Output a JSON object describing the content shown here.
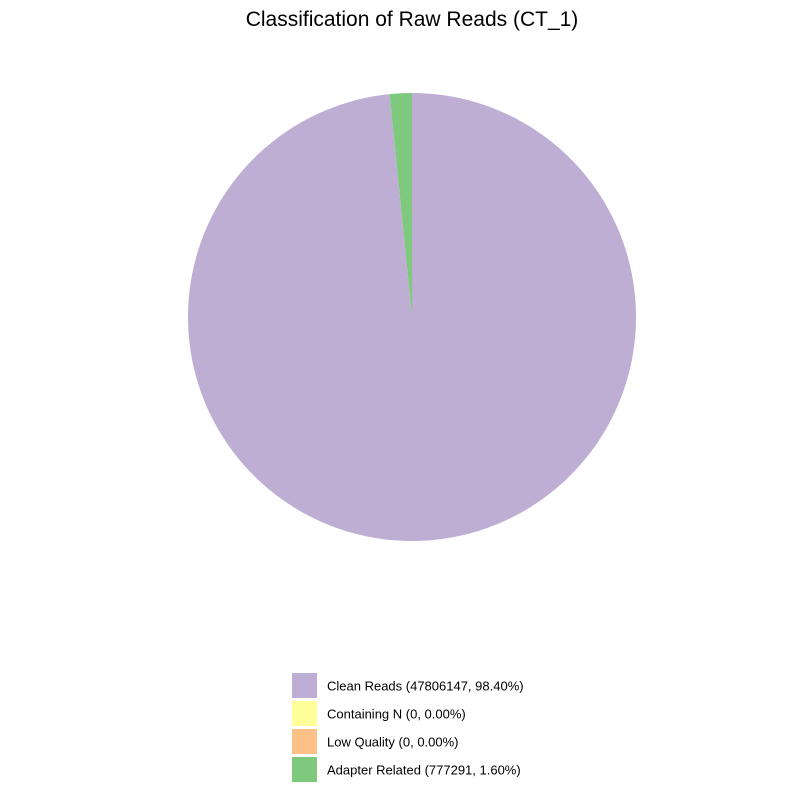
{
  "chart_data": {
    "type": "pie",
    "title": "Classification of Raw Reads (CT_1)",
    "start_angle_deg": 0,
    "direction": "clockwise",
    "legend_position": "bottom",
    "slices": [
      {
        "name": "Clean Reads",
        "value": 47806147,
        "percent": 98.4,
        "color": "#beaed4",
        "legend_label": "Clean Reads (47806147, 98.40%)"
      },
      {
        "name": "Containing N",
        "value": 0,
        "percent": 0.0,
        "color": "#ffff99",
        "legend_label": "Containing N (0, 0.00%)"
      },
      {
        "name": "Low Quality",
        "value": 0,
        "percent": 0.0,
        "color": "#fdc086",
        "legend_label": "Low Quality (0, 0.00%)"
      },
      {
        "name": "Adapter Related",
        "value": 777291,
        "percent": 1.6,
        "color": "#7fc97f",
        "legend_label": "Adapter Related (777291, 1.60%)"
      }
    ]
  }
}
